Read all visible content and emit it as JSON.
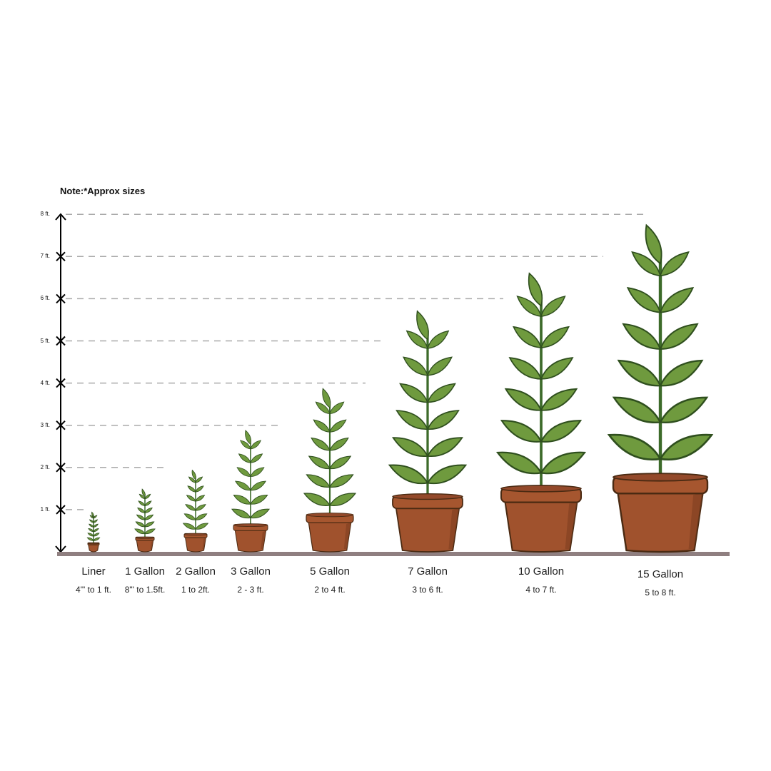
{
  "note": "Note:*Approx sizes",
  "axis": {
    "unit": "ft",
    "ticks": [
      "1 ft.",
      "2 ft.",
      "3 ft.",
      "4 ft.",
      "5 ft.",
      "6 ft.",
      "7 ft.",
      "8 ft."
    ]
  },
  "colors": {
    "leaf": "#6f9a3e",
    "leaf_outline": "#2f4f1e",
    "stem": "#3d6b2a",
    "pot": "#a0522d",
    "pot_outline": "#4a2a12",
    "ground": "#8f7f80",
    "gridline": "#aaaaaa"
  },
  "sizes": [
    {
      "name": "Liner",
      "range": "4\"' to 1 ft.",
      "height_ft": 0.95
    },
    {
      "name": "1 Gallon",
      "range": "8\"' to 1.5ft.",
      "height_ft": 1.5
    },
    {
      "name": "2 Gallon",
      "range": "1 to 2ft.",
      "height_ft": 1.95
    },
    {
      "name": "3 Gallon",
      "range": "2 - 3 ft.",
      "height_ft": 2.9
    },
    {
      "name": "5 Gallon",
      "range": "2 to 4 ft.",
      "height_ft": 3.9
    },
    {
      "name": "7 Gallon",
      "range": "3 to 6 ft.",
      "height_ft": 5.75
    },
    {
      "name": "10 Gallon",
      "range": "4 to 7 ft.",
      "height_ft": 6.65
    },
    {
      "name": "15 Gallon",
      "range": "5 to 8 ft.",
      "height_ft": 7.8
    }
  ]
}
